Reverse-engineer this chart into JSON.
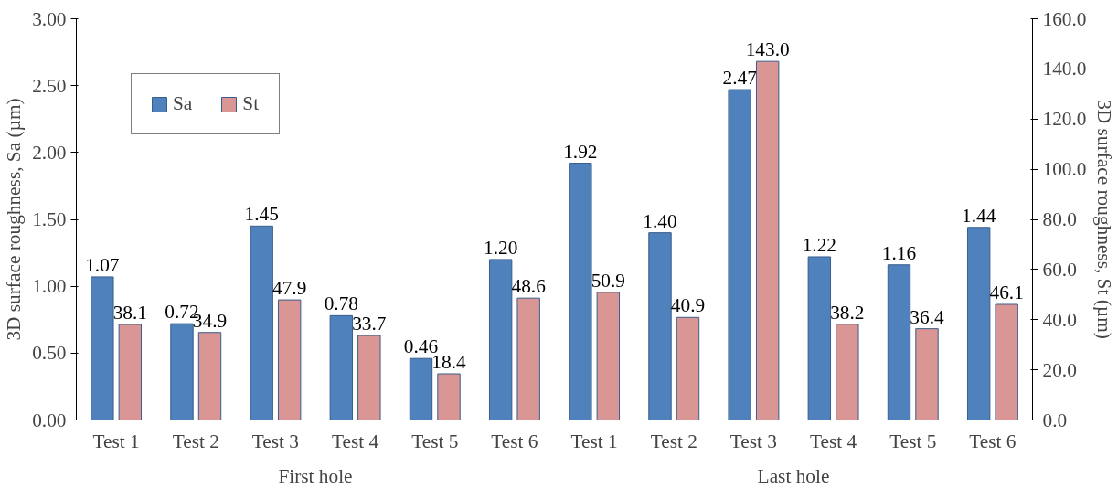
{
  "chart_data": {
    "type": "bar",
    "ylabel": "3D surface roughness, Sa (µm)",
    "y2label": "3D surface roughness, St (µm)",
    "categories": [
      "Test 1",
      "Test 2",
      "Test 3",
      "Test 4",
      "Test 5",
      "Test 6",
      "Test 1",
      "Test 2",
      "Test 3",
      "Test 4",
      "Test 5",
      "Test 6"
    ],
    "annotations": [
      "First hole",
      "Last hole"
    ],
    "series": [
      {
        "name": "Sa",
        "color": "#4f81bd",
        "values": [
          1.07,
          0.72,
          1.45,
          0.78,
          0.46,
          1.2,
          1.92,
          1.4,
          2.47,
          1.22,
          1.16,
          1.44
        ],
        "value_labels": [
          "1.07",
          "0.72",
          "1.45",
          "0.78",
          "0.46",
          "1.20",
          "1.92",
          "1.40",
          "2.47",
          "1.22",
          "1.16",
          "1.44"
        ]
      },
      {
        "name": "St",
        "color": "#d99694",
        "axis": "y2",
        "values": [
          38.1,
          34.9,
          47.9,
          33.7,
          18.4,
          48.6,
          50.9,
          40.9,
          143.0,
          38.2,
          36.4,
          46.1
        ],
        "value_labels": [
          "38.1",
          "34.9",
          "47.9",
          "33.7",
          "18.4",
          "48.6",
          "50.9",
          "40.9",
          "143.0",
          "38.2",
          "36.4",
          "46.1"
        ]
      }
    ],
    "ylim": [
      0,
      3
    ],
    "yticks": [
      {
        "value": 0,
        "label": "0.00"
      },
      {
        "value": 0.5,
        "label": "0.50"
      },
      {
        "value": 1,
        "label": "1.00"
      },
      {
        "value": 1.5,
        "label": "1.50"
      },
      {
        "value": 2,
        "label": "2.00"
      },
      {
        "value": 2.5,
        "label": "2.50"
      },
      {
        "value": 3,
        "label": "3.00"
      }
    ],
    "y2lim": [
      0,
      160
    ],
    "y2ticks": [
      {
        "value": 0,
        "label": "0.0"
      },
      {
        "value": 20,
        "label": "20.0"
      },
      {
        "value": 40,
        "label": "40.0"
      },
      {
        "value": 60,
        "label": "60.0"
      },
      {
        "value": 80,
        "label": "80.0"
      },
      {
        "value": 100,
        "label": "100.0"
      },
      {
        "value": 120,
        "label": "120.0"
      },
      {
        "value": 140,
        "label": "140.0"
      },
      {
        "value": 160,
        "label": "160.0"
      }
    ],
    "grid": false,
    "legend": "top left"
  }
}
